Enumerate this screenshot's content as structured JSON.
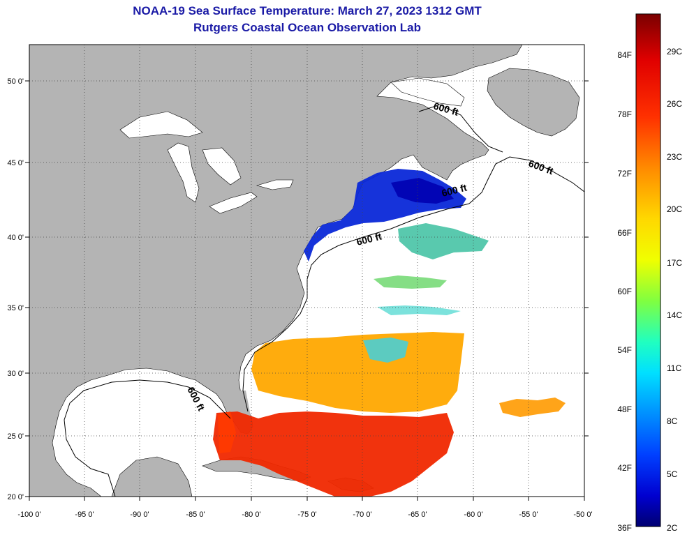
{
  "title": "NOAA-19 Sea Surface Temperature:  March 27, 2023 1312 GMT",
  "subtitle": "Rutgers Coastal Ocean Observation Lab",
  "map": {
    "lon_ticks": [
      "-100 0'",
      "-95 0'",
      "-90 0'",
      "-85 0'",
      "-80 0'",
      "-75 0'",
      "-70 0'",
      "-65 0'",
      "-60 0'",
      "-55 0'",
      "-50 0'"
    ],
    "lat_ticks": [
      "50 0'",
      "45 0'",
      "40 0'",
      "35 0'",
      "30 0'",
      "25 0'",
      "20 0'"
    ],
    "contour_labels": [
      "600 ft",
      "600 ft",
      "600 ft",
      "600 ft",
      "600 ft"
    ],
    "land_color": "#b4b4b4",
    "ocean_color": "#ffffff"
  },
  "colorbar": {
    "fahrenheit_labels": [
      "84F",
      "78F",
      "72F",
      "66F",
      "60F",
      "54F",
      "48F",
      "42F",
      "36F"
    ],
    "celsius_labels": [
      "29C",
      "26C",
      "23C",
      "20C",
      "17C",
      "14C",
      "11C",
      "8C",
      "5C",
      "2C"
    ],
    "colors": [
      "#800000",
      "#ff0000",
      "#ff8000",
      "#ffff00",
      "#00ffff",
      "#0080ff",
      "#0000ff",
      "#000080"
    ]
  }
}
